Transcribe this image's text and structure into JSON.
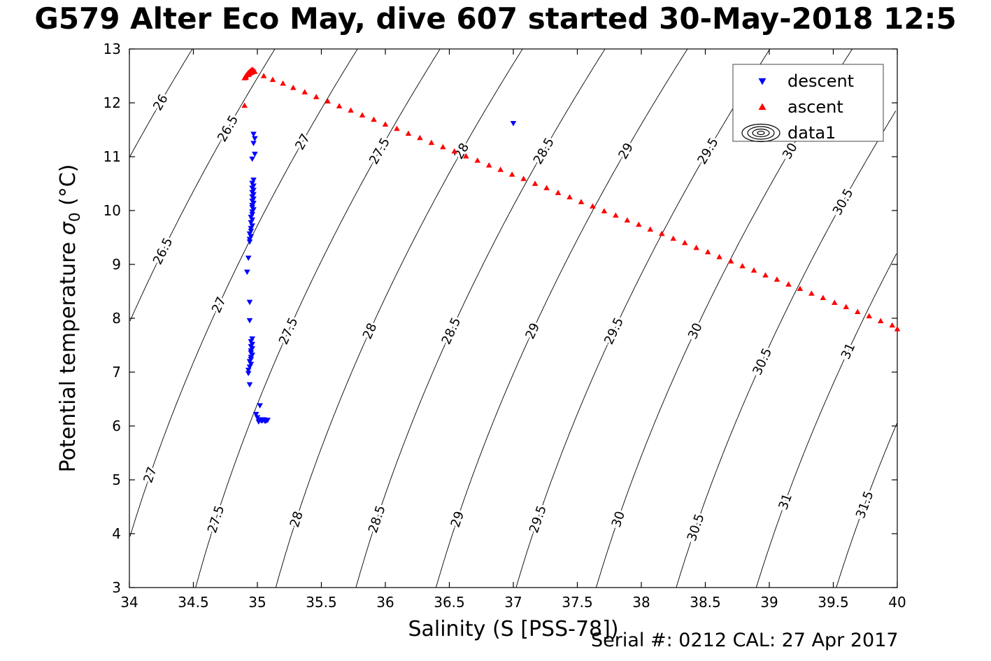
{
  "figure": {
    "title": "G579 Alter Eco May, dive 607 started 30-May-2018 12:5",
    "serial_text": "Serial #: 0212  CAL: 27 Apr 2017"
  },
  "chart_data": {
    "type": "scatter",
    "title": "G579 Alter Eco May, dive 607 started 30-May-2018 12:5",
    "xlabel": "Salinity (S [PSS-78])",
    "ylabel": "Potential temperature σ0 (°C)",
    "ylabel_parts": {
      "pre": "Potential temperature ",
      "sigma": "σ",
      "sub": "0",
      "post": " (°C)"
    },
    "xlim": [
      34,
      40
    ],
    "ylim": [
      3,
      13
    ],
    "xticks": [
      34,
      34.5,
      35,
      35.5,
      36,
      36.5,
      37,
      37.5,
      38,
      38.5,
      39,
      39.5,
      40
    ],
    "yticks": [
      3,
      4,
      5,
      6,
      7,
      8,
      9,
      10,
      11,
      12,
      13
    ],
    "grid": false,
    "legend_position": "top-right",
    "legend": [
      {
        "label": "descent",
        "marker": "triangle-down",
        "color": "#0000ff"
      },
      {
        "label": "ascent",
        "marker": "triangle-up",
        "color": "#ff0000"
      },
      {
        "label": "data1",
        "marker": "contour-rings",
        "color": "#000000"
      }
    ],
    "contours": {
      "name": "sigma0-isopycnal-contours",
      "levels": [
        26,
        26.5,
        27,
        27.5,
        28,
        28.5,
        29,
        29.5,
        30,
        30.5,
        31,
        31.5
      ],
      "color": "#000000"
    },
    "series": [
      {
        "name": "descent",
        "marker": "triangle-down",
        "color": "#0000ff",
        "points": [
          [
            37.0,
            11.62
          ],
          [
            34.97,
            11.42
          ],
          [
            34.98,
            11.34
          ],
          [
            34.97,
            11.25
          ],
          [
            34.98,
            11.05
          ],
          [
            34.96,
            10.96
          ],
          [
            34.97,
            10.57
          ],
          [
            34.96,
            10.51
          ],
          [
            34.97,
            10.46
          ],
          [
            34.96,
            10.42
          ],
          [
            34.97,
            10.38
          ],
          [
            34.96,
            10.34
          ],
          [
            34.97,
            10.3
          ],
          [
            34.96,
            10.26
          ],
          [
            34.97,
            10.22
          ],
          [
            34.96,
            10.18
          ],
          [
            34.97,
            10.14
          ],
          [
            34.96,
            10.1
          ],
          [
            34.96,
            10.06
          ],
          [
            34.97,
            10.02
          ],
          [
            34.96,
            9.98
          ],
          [
            34.96,
            9.93
          ],
          [
            34.95,
            9.88
          ],
          [
            34.96,
            9.83
          ],
          [
            34.95,
            9.78
          ],
          [
            34.96,
            9.72
          ],
          [
            34.95,
            9.67
          ],
          [
            34.95,
            9.62
          ],
          [
            34.94,
            9.57
          ],
          [
            34.95,
            9.52
          ],
          [
            34.94,
            9.47
          ],
          [
            34.94,
            9.42
          ],
          [
            34.93,
            9.12
          ],
          [
            34.92,
            8.86
          ],
          [
            34.94,
            8.3
          ],
          [
            34.94,
            7.96
          ],
          [
            34.96,
            7.62
          ],
          [
            34.95,
            7.57
          ],
          [
            34.96,
            7.52
          ],
          [
            34.95,
            7.48
          ],
          [
            34.96,
            7.44
          ],
          [
            34.95,
            7.4
          ],
          [
            34.95,
            7.36
          ],
          [
            34.96,
            7.32
          ],
          [
            34.95,
            7.28
          ],
          [
            34.95,
            7.24
          ],
          [
            34.94,
            7.2
          ],
          [
            34.95,
            7.15
          ],
          [
            34.94,
            7.1
          ],
          [
            34.93,
            7.04
          ],
          [
            34.93,
            6.98
          ],
          [
            34.94,
            6.77
          ],
          [
            35.02,
            6.38
          ],
          [
            34.99,
            6.22
          ],
          [
            35.0,
            6.16
          ],
          [
            35.02,
            6.12
          ],
          [
            35.04,
            6.1
          ],
          [
            35.06,
            6.09
          ],
          [
            35.01,
            6.08
          ],
          [
            35.03,
            6.1
          ],
          [
            35.05,
            6.12
          ],
          [
            35.07,
            6.1
          ],
          [
            35.08,
            6.11
          ]
        ]
      },
      {
        "name": "ascent",
        "marker": "triangle-up",
        "color": "#ff0000",
        "points": [
          [
            34.9,
            12.46
          ],
          [
            34.91,
            12.5
          ],
          [
            34.92,
            12.53
          ],
          [
            34.93,
            12.56
          ],
          [
            34.94,
            12.58
          ],
          [
            34.95,
            12.6
          ],
          [
            34.96,
            12.62
          ],
          [
            34.97,
            12.6
          ],
          [
            34.95,
            12.56
          ],
          [
            34.93,
            12.52
          ],
          [
            34.91,
            12.47
          ],
          [
            34.94,
            12.54
          ],
          [
            34.96,
            12.57
          ],
          [
            34.98,
            12.58
          ],
          [
            34.9,
            11.95
          ],
          [
            35.05,
            12.5
          ],
          [
            35.12,
            12.43
          ],
          [
            35.2,
            12.36
          ],
          [
            35.28,
            12.28
          ],
          [
            35.37,
            12.2
          ],
          [
            35.46,
            12.11
          ],
          [
            35.55,
            12.03
          ],
          [
            35.64,
            11.94
          ],
          [
            35.73,
            11.86
          ],
          [
            35.82,
            11.77
          ],
          [
            35.91,
            11.69
          ],
          [
            36.0,
            11.6
          ],
          [
            36.09,
            11.52
          ],
          [
            36.18,
            11.43
          ],
          [
            36.27,
            11.35
          ],
          [
            36.36,
            11.26
          ],
          [
            36.45,
            11.18
          ],
          [
            36.54,
            11.1
          ],
          [
            36.63,
            11.01
          ],
          [
            36.72,
            10.93
          ],
          [
            36.81,
            10.84
          ],
          [
            36.9,
            10.76
          ],
          [
            36.99,
            10.67
          ],
          [
            37.08,
            10.59
          ],
          [
            37.17,
            10.5
          ],
          [
            37.26,
            10.42
          ],
          [
            37.35,
            10.33
          ],
          [
            37.44,
            10.25
          ],
          [
            37.53,
            10.16
          ],
          [
            37.62,
            10.08
          ],
          [
            37.71,
            9.99
          ],
          [
            37.8,
            9.91
          ],
          [
            37.89,
            9.82
          ],
          [
            37.98,
            9.74
          ],
          [
            38.07,
            9.65
          ],
          [
            38.16,
            9.57
          ],
          [
            38.25,
            9.48
          ],
          [
            38.34,
            9.4
          ],
          [
            38.43,
            9.31
          ],
          [
            38.52,
            9.23
          ],
          [
            38.61,
            9.14
          ],
          [
            38.7,
            9.06
          ],
          [
            38.79,
            8.97
          ],
          [
            38.88,
            8.89
          ],
          [
            38.97,
            8.8
          ],
          [
            39.06,
            8.72
          ],
          [
            39.15,
            8.63
          ],
          [
            39.24,
            8.55
          ],
          [
            39.33,
            8.46
          ],
          [
            39.42,
            8.38
          ],
          [
            39.51,
            8.29
          ],
          [
            39.6,
            8.21
          ],
          [
            39.69,
            8.12
          ],
          [
            39.78,
            8.04
          ],
          [
            39.87,
            7.95
          ],
          [
            39.96,
            7.87
          ],
          [
            40.0,
            7.8
          ]
        ]
      }
    ]
  }
}
